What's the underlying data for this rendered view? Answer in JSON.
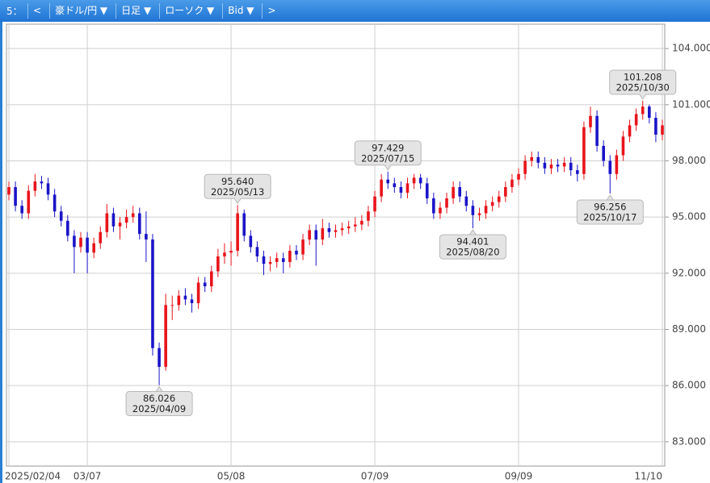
{
  "toolbar": {
    "period": "5：",
    "prev": "<",
    "symbol": "豪ドル/円 ▼",
    "interval": "日足 ▼",
    "style": "ローソク ▼",
    "price": "Bid ▼",
    "next": ">"
  },
  "chart_data": {
    "type": "candlestick",
    "categories": [
      "2025/02/04",
      null,
      null,
      null,
      null,
      null,
      null,
      null,
      null,
      null,
      null,
      null,
      "03/07",
      null,
      null,
      null,
      null,
      null,
      null,
      null,
      null,
      null,
      null,
      null,
      null,
      null,
      null,
      null,
      null,
      null,
      null,
      null,
      null,
      null,
      "05/08",
      null,
      null,
      null,
      null,
      null,
      null,
      null,
      null,
      null,
      null,
      null,
      null,
      null,
      null,
      null,
      null,
      null,
      null,
      null,
      null,
      null,
      "07/09",
      null,
      null,
      null,
      null,
      null,
      null,
      null,
      null,
      null,
      null,
      null,
      null,
      null,
      null,
      null,
      null,
      null,
      null,
      null,
      null,
      null,
      "09/09",
      null,
      null,
      null,
      null,
      null,
      null,
      null,
      null,
      null,
      null,
      null,
      null,
      null,
      null,
      null,
      null,
      null,
      null,
      null,
      null,
      null,
      "11/10"
    ],
    "open": [
      96.2,
      96.6,
      95.6,
      95.2,
      96.4,
      96.9,
      96.8,
      96.2,
      95.3,
      94.8,
      94.0,
      93.4,
      93.9,
      93.1,
      93.6,
      94.2,
      95.2,
      94.5,
      94.7,
      95.0,
      95.2,
      94.1,
      93.8,
      88.0,
      87.0,
      90.3,
      90.3,
      90.8,
      90.6,
      90.4,
      91.5,
      91.3,
      92.1,
      92.9,
      93.1,
      93.2,
      95.2,
      94.0,
      93.4,
      92.9,
      92.5,
      92.6,
      92.8,
      92.6,
      93.2,
      93.0,
      93.8,
      94.3,
      93.8,
      94.4,
      94.2,
      94.3,
      94.4,
      94.5,
      94.6,
      94.8,
      95.3,
      96.1,
      97.0,
      96.8,
      96.6,
      96.3,
      96.8,
      97.1,
      96.8,
      96.0,
      95.2,
      95.5,
      96.0,
      96.6,
      96.1,
      95.6,
      95.1,
      95.2,
      95.6,
      95.8,
      96.1,
      96.6,
      97.0,
      97.3,
      98.0,
      98.2,
      97.9,
      97.6,
      97.8,
      97.7,
      97.9,
      97.5,
      97.3,
      99.8,
      100.4,
      98.8,
      98.0,
      97.3,
      98.3,
      99.3,
      99.9,
      100.5,
      100.9,
      100.3,
      99.4
    ],
    "high": [
      96.9,
      96.9,
      95.9,
      96.7,
      97.3,
      97.2,
      97.1,
      96.5,
      95.6,
      95.1,
      94.3,
      94.2,
      94.2,
      93.9,
      94.5,
      95.7,
      95.5,
      95.0,
      95.4,
      95.6,
      95.5,
      95.3,
      94.1,
      88.3,
      90.9,
      90.8,
      91.1,
      91.2,
      90.9,
      91.8,
      91.8,
      92.4,
      93.3,
      93.6,
      93.7,
      95.64,
      95.4,
      94.3,
      93.7,
      93.2,
      92.9,
      93.1,
      93.1,
      93.5,
      93.5,
      94.1,
      94.6,
      94.6,
      94.9,
      94.7,
      94.6,
      94.7,
      94.8,
      95.0,
      95.1,
      95.6,
      96.4,
      97.3,
      97.429,
      97.1,
      96.9,
      97.1,
      97.3,
      97.3,
      97.1,
      96.3,
      95.8,
      96.3,
      96.9,
      96.9,
      96.4,
      95.9,
      95.5,
      95.9,
      96.1,
      96.4,
      96.9,
      97.3,
      97.6,
      98.3,
      98.5,
      98.5,
      98.2,
      98.1,
      98.1,
      98.2,
      98.2,
      97.8,
      100.1,
      100.9,
      100.7,
      99.1,
      98.3,
      98.6,
      99.6,
      100.2,
      100.8,
      101.208,
      101.0,
      100.6,
      100.2
    ],
    "low": [
      95.9,
      95.3,
      94.9,
      94.9,
      96.1,
      96.5,
      95.9,
      95.0,
      94.5,
      93.7,
      92.0,
      93.1,
      92.0,
      92.8,
      93.3,
      93.9,
      94.2,
      93.8,
      94.4,
      94.7,
      93.8,
      92.6,
      87.6,
      86.026,
      86.8,
      89.5,
      90.0,
      90.3,
      89.9,
      90.1,
      91.0,
      91.0,
      91.8,
      92.5,
      92.4,
      92.9,
      93.7,
      93.1,
      92.6,
      91.9,
      92.1,
      92.3,
      92.0,
      92.3,
      92.7,
      92.7,
      93.5,
      92.4,
      93.5,
      93.9,
      93.9,
      94.0,
      94.1,
      94.2,
      94.3,
      94.5,
      95.0,
      95.8,
      96.5,
      96.3,
      96.0,
      96.0,
      96.5,
      96.5,
      95.7,
      94.9,
      94.9,
      95.2,
      95.7,
      95.8,
      95.3,
      94.401,
      94.8,
      94.9,
      95.3,
      95.5,
      95.8,
      96.3,
      96.7,
      97.0,
      97.7,
      97.6,
      97.3,
      97.3,
      97.4,
      97.4,
      97.2,
      96.9,
      97.0,
      99.5,
      98.5,
      97.7,
      96.256,
      97.0,
      98.0,
      99.0,
      99.6,
      100.2,
      100.0,
      99.0,
      99.1
    ],
    "close": [
      96.6,
      95.6,
      95.2,
      96.4,
      96.9,
      96.8,
      96.2,
      95.3,
      94.8,
      94.0,
      93.4,
      93.9,
      93.1,
      93.6,
      94.2,
      95.2,
      94.5,
      94.7,
      95.0,
      95.2,
      94.1,
      93.8,
      88.0,
      87.0,
      90.3,
      90.3,
      90.8,
      90.6,
      90.4,
      91.5,
      91.3,
      92.1,
      92.9,
      93.1,
      93.2,
      95.2,
      94.0,
      93.4,
      92.9,
      92.5,
      92.6,
      92.8,
      92.6,
      93.2,
      93.0,
      93.8,
      94.3,
      93.8,
      94.4,
      94.2,
      94.3,
      94.4,
      94.5,
      94.6,
      94.8,
      95.3,
      96.1,
      97.0,
      96.8,
      96.6,
      96.3,
      96.8,
      97.1,
      96.8,
      96.0,
      95.2,
      95.5,
      96.0,
      96.6,
      96.1,
      95.6,
      95.1,
      95.2,
      95.6,
      95.8,
      96.1,
      96.6,
      97.0,
      97.3,
      98.0,
      98.2,
      97.9,
      97.6,
      97.8,
      97.7,
      97.9,
      97.5,
      97.3,
      99.8,
      100.4,
      98.8,
      98.0,
      97.3,
      98.3,
      99.3,
      99.9,
      100.5,
      100.9,
      100.3,
      99.4,
      99.9
    ],
    "up_color": "#e8141b",
    "down_color": "#1a14c8",
    "ylim": [
      81.7,
      105.3
    ],
    "yticks": [
      {
        "value": 83,
        "label": "83.000"
      },
      {
        "value": 86,
        "label": "86.000"
      },
      {
        "value": 89,
        "label": "89.000"
      },
      {
        "value": 92,
        "label": "92.000"
      },
      {
        "value": 95,
        "label": "95.000"
      },
      {
        "value": 98,
        "label": "98.000"
      },
      {
        "value": 101,
        "label": "101.000"
      },
      {
        "value": 104,
        "label": "104.000"
      }
    ],
    "grid": true,
    "annotations": [
      {
        "value": 86.026,
        "date": "2025/04/09",
        "kind": "low"
      },
      {
        "value": 95.64,
        "label": "95.640",
        "date": "2025/05/13",
        "kind": "high"
      },
      {
        "value": 97.429,
        "date": "2025/07/15",
        "kind": "high"
      },
      {
        "value": 94.401,
        "date": "2025/08/20",
        "kind": "low"
      },
      {
        "value": 96.256,
        "date": "2025/10/17",
        "kind": "low"
      },
      {
        "value": 101.208,
        "date": "2025/10/30",
        "kind": "high"
      }
    ]
  }
}
